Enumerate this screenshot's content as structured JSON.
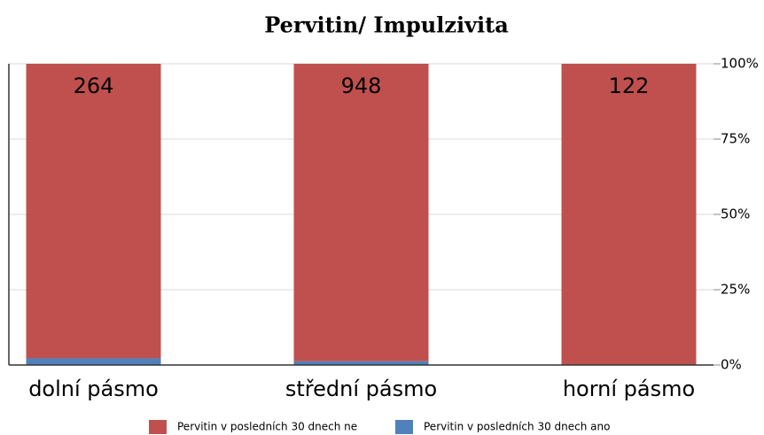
{
  "chart_data": {
    "type": "bar",
    "stacked": "percent",
    "title": "Pervitin/ Impulzivita",
    "categories": [
      "dolní pásmo",
      "střední pásmo",
      "horní pásmo"
    ],
    "series": [
      {
        "name": "Pervitin v posledních 30 dnech ano",
        "color": "#4f81bd",
        "values": [
          6,
          12,
          0
        ]
      },
      {
        "name": "Pervitin v posledních 30 dnech ne",
        "color": "#c0504d",
        "values": [
          264,
          948,
          122
        ]
      }
    ],
    "ylim": [
      0,
      100
    ],
    "yticks": [
      {
        "value": 0,
        "label": "0%"
      },
      {
        "value": 25,
        "label": "25%"
      },
      {
        "value": 50,
        "label": "50%"
      },
      {
        "value": 75,
        "label": "75%"
      },
      {
        "value": 100,
        "label": "100%"
      }
    ],
    "grid": true,
    "legend": "bottom"
  }
}
